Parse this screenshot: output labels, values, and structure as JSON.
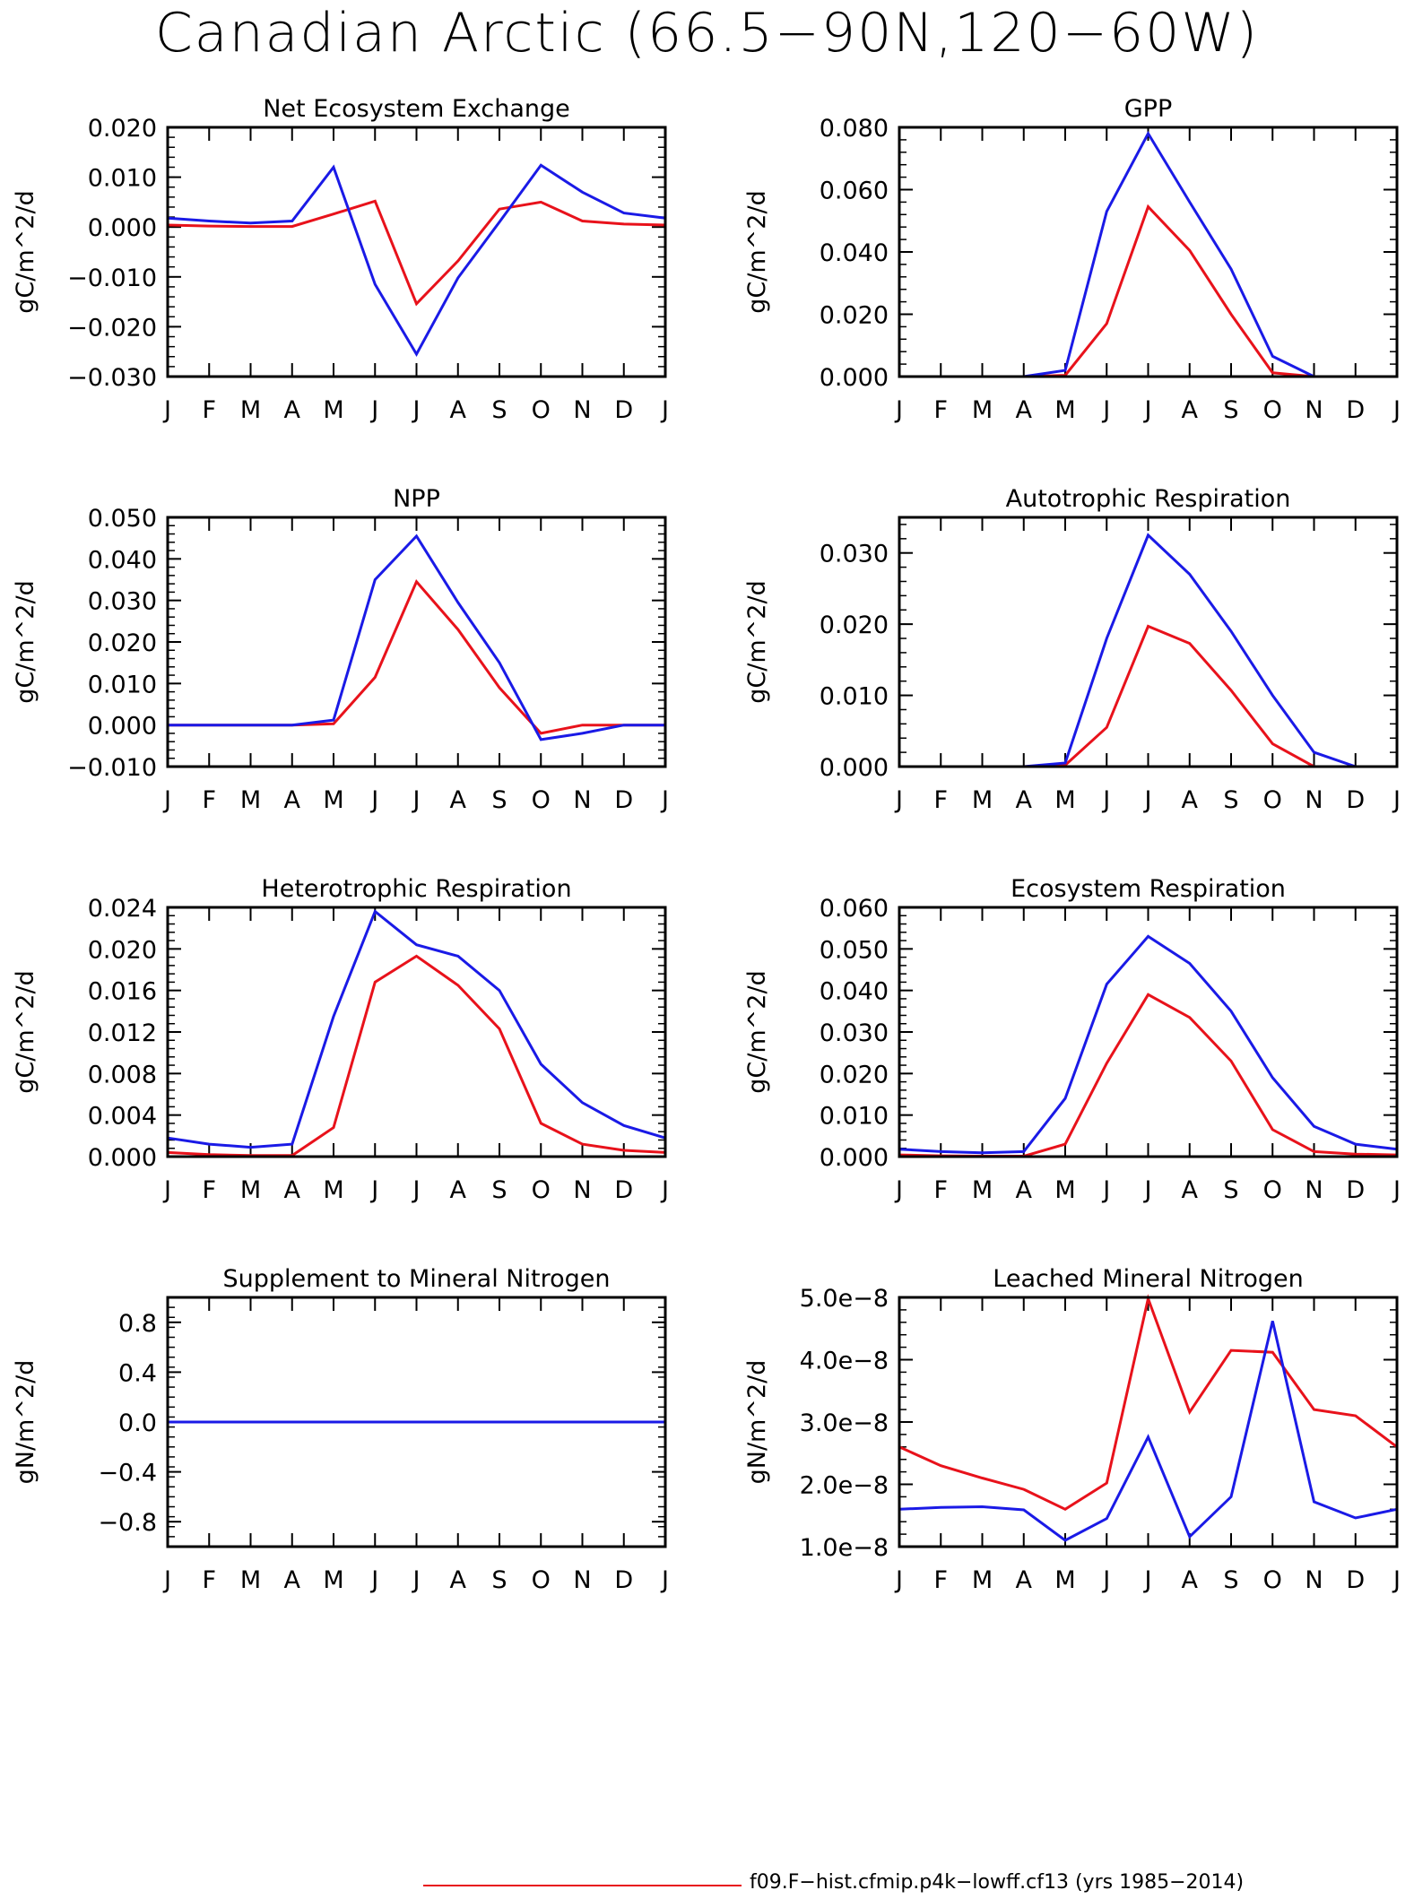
{
  "page": {
    "title": "Canadian Arctic (66.5−90N,120−60W)"
  },
  "colors": {
    "red": "#e8121b",
    "blue": "#1a1ae6"
  },
  "legend": {
    "red_label": "f09.F−hist.cfmip.p4k−lowff.cf13 (yrs 1985−2014)"
  },
  "chart_data": [
    {
      "type": "line",
      "title": "Net Ecosystem Exchange",
      "ylabel": "gC/m^2/d",
      "categories": [
        "J",
        "F",
        "M",
        "A",
        "M",
        "J",
        "J",
        "A",
        "S",
        "O",
        "N",
        "D",
        "J"
      ],
      "ylim": [
        -0.03,
        0.02
      ],
      "yticks": [
        -0.03,
        -0.02,
        -0.01,
        0.0,
        0.01,
        0.02
      ],
      "ytick_labels": [
        "−0.030",
        "−0.020",
        "−0.010",
        "0.000",
        "0.010",
        "0.020"
      ],
      "series": [
        {
          "color": "red",
          "values": [
            0.0004,
            0.0002,
            0.0001,
            0.0001,
            0.0026,
            0.0052,
            -0.0154,
            -0.0068,
            0.0036,
            0.005,
            0.0012,
            0.0006,
            0.0004
          ]
        },
        {
          "color": "blue",
          "values": [
            0.0018,
            0.0012,
            0.0008,
            0.0012,
            0.012,
            -0.0115,
            -0.0255,
            -0.0102,
            0.001,
            0.0124,
            0.007,
            0.0028,
            0.0018
          ]
        }
      ]
    },
    {
      "type": "line",
      "title": "GPP",
      "ylabel": "gC/m^2/d",
      "categories": [
        "J",
        "F",
        "M",
        "A",
        "M",
        "J",
        "J",
        "A",
        "S",
        "O",
        "N",
        "D",
        "J"
      ],
      "ylim": [
        0.0,
        0.08
      ],
      "yticks": [
        0.0,
        0.02,
        0.04,
        0.06,
        0.08
      ],
      "ytick_labels": [
        "0.000",
        "0.020",
        "0.040",
        "0.060",
        "0.080"
      ],
      "series": [
        {
          "color": "red",
          "values": [
            0,
            0,
            0,
            0,
            0.0004,
            0.017,
            0.0545,
            0.0405,
            0.02,
            0.0012,
            0,
            0,
            0
          ]
        },
        {
          "color": "blue",
          "values": [
            0,
            0,
            0,
            0,
            0.002,
            0.053,
            0.078,
            0.056,
            0.0345,
            0.0065,
            0,
            0,
            0
          ]
        }
      ]
    },
    {
      "type": "line",
      "title": "NPP",
      "ylabel": "gC/m^2/d",
      "categories": [
        "J",
        "F",
        "M",
        "A",
        "M",
        "J",
        "J",
        "A",
        "S",
        "O",
        "N",
        "D",
        "J"
      ],
      "ylim": [
        -0.01,
        0.05
      ],
      "yticks": [
        -0.01,
        0.0,
        0.01,
        0.02,
        0.03,
        0.04,
        0.05
      ],
      "ytick_labels": [
        "−0.010",
        "0.000",
        "0.010",
        "0.020",
        "0.030",
        "0.040",
        "0.050"
      ],
      "series": [
        {
          "color": "red",
          "values": [
            0,
            0,
            0,
            0,
            0.0003,
            0.0115,
            0.0345,
            0.023,
            0.009,
            -0.002,
            0,
            0,
            0
          ]
        },
        {
          "color": "blue",
          "values": [
            0,
            0,
            0,
            0,
            0.0012,
            0.035,
            0.0455,
            0.0295,
            0.015,
            -0.0035,
            -0.002,
            0,
            0
          ]
        }
      ]
    },
    {
      "type": "line",
      "title": "Autotrophic Respiration",
      "ylabel": "gC/m^2/d",
      "categories": [
        "J",
        "F",
        "M",
        "A",
        "M",
        "J",
        "J",
        "A",
        "S",
        "O",
        "N",
        "D",
        "J"
      ],
      "ylim": [
        0.0,
        0.035
      ],
      "yticks": [
        0.0,
        0.01,
        0.02,
        0.03
      ],
      "ytick_labels": [
        "0.000",
        "0.010",
        "0.020",
        "0.030"
      ],
      "series": [
        {
          "color": "red",
          "values": [
            0,
            0,
            0,
            0,
            0.0002,
            0.0055,
            0.0197,
            0.0173,
            0.0107,
            0.0032,
            0,
            0,
            0
          ]
        },
        {
          "color": "blue",
          "values": [
            0,
            0,
            0,
            0,
            0.0005,
            0.018,
            0.0325,
            0.027,
            0.019,
            0.01,
            0.002,
            0,
            0
          ]
        }
      ]
    },
    {
      "type": "line",
      "title": "Heterotrophic Respiration",
      "ylabel": "gC/m^2/d",
      "categories": [
        "J",
        "F",
        "M",
        "A",
        "M",
        "J",
        "J",
        "A",
        "S",
        "O",
        "N",
        "D",
        "J"
      ],
      "ylim": [
        0.0,
        0.024
      ],
      "yticks": [
        0.0,
        0.004,
        0.008,
        0.012,
        0.016,
        0.02,
        0.024
      ],
      "ytick_labels": [
        "0.000",
        "0.004",
        "0.008",
        "0.012",
        "0.016",
        "0.020",
        "0.024"
      ],
      "series": [
        {
          "color": "red",
          "values": [
            0.0004,
            0.0002,
            0.0001,
            0.0001,
            0.0028,
            0.0168,
            0.0193,
            0.0165,
            0.0123,
            0.0032,
            0.0012,
            0.0006,
            0.0004
          ]
        },
        {
          "color": "blue",
          "values": [
            0.0018,
            0.0012,
            0.0009,
            0.0012,
            0.0135,
            0.0236,
            0.0204,
            0.0193,
            0.016,
            0.0089,
            0.0052,
            0.003,
            0.0018
          ]
        }
      ]
    },
    {
      "type": "line",
      "title": "Ecosystem Respiration",
      "ylabel": "gC/m^2/d",
      "categories": [
        "J",
        "F",
        "M",
        "A",
        "M",
        "J",
        "J",
        "A",
        "S",
        "O",
        "N",
        "D",
        "J"
      ],
      "ylim": [
        0.0,
        0.06
      ],
      "yticks": [
        0.0,
        0.01,
        0.02,
        0.03,
        0.04,
        0.05,
        0.06
      ],
      "ytick_labels": [
        "0.000",
        "0.010",
        "0.020",
        "0.030",
        "0.040",
        "0.050",
        "0.060"
      ],
      "series": [
        {
          "color": "red",
          "values": [
            0.0004,
            0.0002,
            0.0001,
            0.0001,
            0.003,
            0.0225,
            0.039,
            0.0335,
            0.023,
            0.0065,
            0.0012,
            0.0006,
            0.0004
          ]
        },
        {
          "color": "blue",
          "values": [
            0.0018,
            0.0012,
            0.0009,
            0.0012,
            0.014,
            0.0415,
            0.053,
            0.0465,
            0.035,
            0.019,
            0.0073,
            0.003,
            0.0018
          ]
        }
      ]
    },
    {
      "type": "line",
      "title": "Supplement to Mineral Nitrogen",
      "ylabel": "gN/m^2/d",
      "categories": [
        "J",
        "F",
        "M",
        "A",
        "M",
        "J",
        "J",
        "A",
        "S",
        "O",
        "N",
        "D",
        "J"
      ],
      "ylim": [
        -1.0,
        1.0
      ],
      "yticks": [
        -0.8,
        -0.4,
        0.0,
        0.4,
        0.8
      ],
      "ytick_labels": [
        "−0.8",
        "−0.4",
        "0.0",
        "0.4",
        "0.8"
      ],
      "series": [
        {
          "color": "red",
          "values": [
            0,
            0,
            0,
            0,
            0,
            0,
            0,
            0,
            0,
            0,
            0,
            0,
            0
          ]
        },
        {
          "color": "blue",
          "values": [
            0,
            0,
            0,
            0,
            0,
            0,
            0,
            0,
            0,
            0,
            0,
            0,
            0
          ]
        }
      ]
    },
    {
      "type": "line",
      "title": "Leached Mineral Nitrogen",
      "ylabel": "gN/m^2/d",
      "categories": [
        "J",
        "F",
        "M",
        "A",
        "M",
        "J",
        "J",
        "A",
        "S",
        "O",
        "N",
        "D",
        "J"
      ],
      "ylim": [
        1e-08,
        5e-08
      ],
      "yticks": [
        1e-08,
        2e-08,
        3e-08,
        4e-08,
        5e-08
      ],
      "ytick_labels": [
        "1.0e−8",
        "2.0e−8",
        "3.0e−8",
        "4.0e−8",
        "5.0e−8"
      ],
      "series": [
        {
          "color": "red",
          "values": [
            2.6e-08,
            2.3e-08,
            2.1e-08,
            1.92e-08,
            1.6e-08,
            2.02e-08,
            4.98e-08,
            3.16e-08,
            4.15e-08,
            4.12e-08,
            3.2e-08,
            3.1e-08,
            2.6e-08
          ]
        },
        {
          "color": "blue",
          "values": [
            1.6e-08,
            1.63e-08,
            1.64e-08,
            1.59e-08,
            1.1e-08,
            1.45e-08,
            2.76e-08,
            1.16e-08,
            1.8e-08,
            4.62e-08,
            1.72e-08,
            1.46e-08,
            1.6e-08
          ]
        }
      ]
    }
  ]
}
